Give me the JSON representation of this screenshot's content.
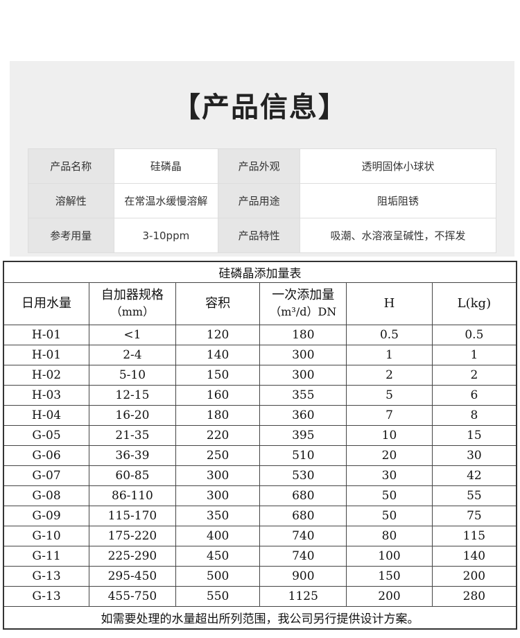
{
  "title": "【产品信息】",
  "info": [
    [
      "产品名称",
      "硅磷晶",
      "产品外观",
      "透明固体小球状"
    ],
    [
      "溶解性",
      "在常温水缓慢溶解",
      "产品用途",
      "阻垢阻锈"
    ],
    [
      "参考用量",
      "3-10ppm",
      "产品特性",
      "吸潮、水溶液呈碱性，不挥发"
    ]
  ],
  "table": {
    "title": "硅磷晶添加量表",
    "headers": [
      [
        "日用水量",
        ""
      ],
      [
        "自加器规格",
        "（mm）"
      ],
      [
        "容积",
        ""
      ],
      [
        "一次添加量",
        "（m³/d）DN"
      ],
      [
        "H",
        ""
      ],
      [
        "L(kg)",
        ""
      ]
    ],
    "rows": [
      [
        "H-01",
        "<1",
        "120",
        "180",
        "0.5",
        "0.5"
      ],
      [
        "H-01",
        "2-4",
        "140",
        "300",
        "1",
        "1"
      ],
      [
        "H-02",
        "5-10",
        "150",
        "300",
        "2",
        "2"
      ],
      [
        "H-03",
        "12-15",
        "160",
        "355",
        "5",
        "6"
      ],
      [
        "H-04",
        "16-20",
        "180",
        "360",
        "7",
        "8"
      ],
      [
        "G-05",
        "21-35",
        "220",
        "395",
        "10",
        "15"
      ],
      [
        "G-06",
        "36-39",
        "250",
        "510",
        "20",
        "30"
      ],
      [
        "G-07",
        "60-85",
        "300",
        "530",
        "30",
        "42"
      ],
      [
        "G-08",
        "86-110",
        "300",
        "680",
        "50",
        "55"
      ],
      [
        "G-09",
        "115-170",
        "350",
        "680",
        "50",
        "75"
      ],
      [
        "G-10",
        "175-220",
        "400",
        "740",
        "80",
        "115"
      ],
      [
        "G-11",
        "225-290",
        "450",
        "740",
        "100",
        "140"
      ],
      [
        "G-13",
        "295-450",
        "500",
        "900",
        "150",
        "200"
      ],
      [
        "G-13",
        "455-750",
        "550",
        "1125",
        "200",
        "280"
      ]
    ],
    "footer": "如需要处理的水量超出所列范围，我公司另行提供设计方案。"
  }
}
